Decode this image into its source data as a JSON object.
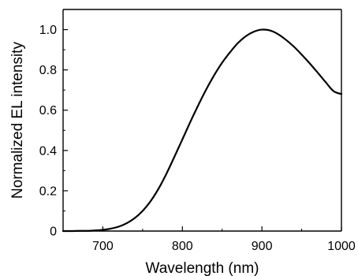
{
  "chart_data": {
    "type": "line",
    "title": "",
    "xlabel": "Wavelength (nm)",
    "ylabel": "Normalized EL intensity",
    "xlim": [
      650,
      1000
    ],
    "ylim": [
      0,
      1.1
    ],
    "grid": false,
    "legend": "none",
    "x_ticks": [
      700,
      800,
      900,
      1000
    ],
    "x_tick_labels": [
      "700",
      "800",
      "900",
      "1000"
    ],
    "y_ticks": [
      0,
      0.2,
      0.4,
      0.6,
      0.8,
      1.0
    ],
    "y_tick_labels": [
      "0",
      "0.2",
      "0.4",
      "0.6",
      "0.8",
      "1.0"
    ],
    "series": [
      {
        "color": "#000000",
        "x": [
          650,
          660,
          670,
          680,
          690,
          700,
          710,
          720,
          730,
          740,
          750,
          760,
          770,
          780,
          790,
          800,
          810,
          820,
          830,
          840,
          850,
          860,
          870,
          880,
          890,
          900,
          910,
          920,
          930,
          940,
          950,
          960,
          970,
          980,
          990,
          1000
        ],
        "values": [
          0.0,
          0.0,
          0.001,
          0.001,
          0.003,
          0.006,
          0.012,
          0.022,
          0.039,
          0.064,
          0.1,
          0.148,
          0.21,
          0.285,
          0.369,
          0.455,
          0.542,
          0.625,
          0.703,
          0.774,
          0.836,
          0.888,
          0.934,
          0.968,
          0.99,
          1.0,
          0.996,
          0.978,
          0.95,
          0.916,
          0.876,
          0.833,
          0.787,
          0.74,
          0.695,
          0.68
        ]
      }
    ]
  }
}
